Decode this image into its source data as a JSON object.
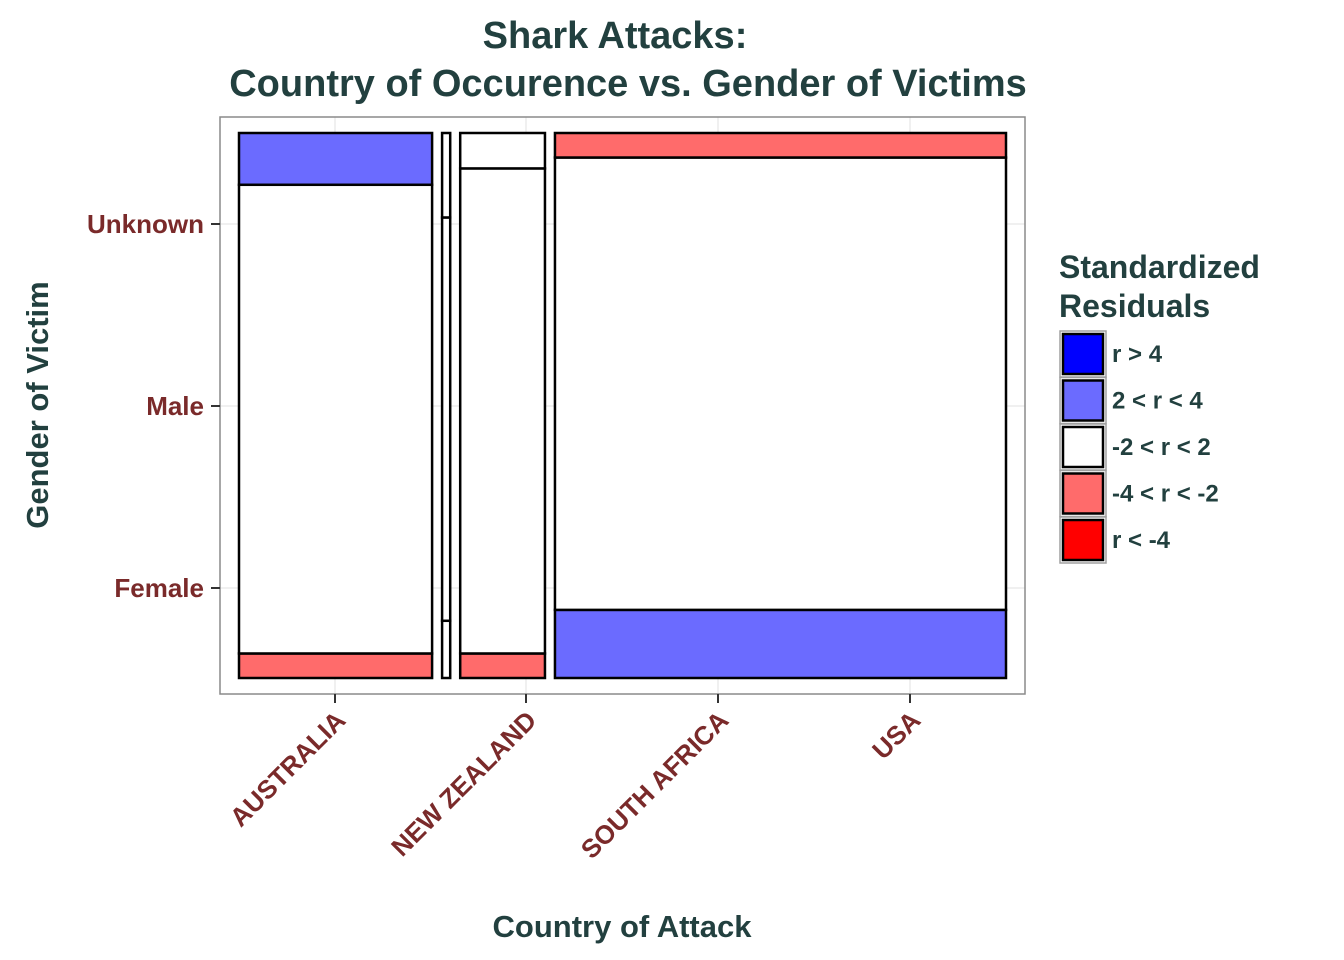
{
  "chart_data": {
    "type": "mosaic",
    "title": "Shark Attacks:",
    "subtitle": "Country of Occurence vs. Gender of Victims",
    "xlabel": "Country of Attack",
    "ylabel": "Gender of Victim",
    "x_categories": [
      "AUSTRALIA",
      "NEW ZEALAND",
      "SOUTH AFRICA",
      "USA"
    ],
    "y_categories": [
      "Female",
      "Male",
      "Unknown"
    ],
    "grid": true,
    "legend": {
      "title_line1": "Standardized",
      "title_line2": "Residuals",
      "position": "right",
      "entries": [
        {
          "label": "r > 4",
          "color": "#0000ff"
        },
        {
          "label": "2 < r < 4",
          "color": "#6b6bff"
        },
        {
          "label": "-2 < r < 2",
          "color": "#ffffff"
        },
        {
          "label": "-4 < r < -2",
          "color": "#ff6b6b"
        },
        {
          "label": "r < -4",
          "color": "#ff0000"
        }
      ]
    },
    "columns": [
      {
        "country": "AUSTRALIA",
        "width": 0.262,
        "cells": [
          {
            "gender": "Female",
            "proportion": 0.045,
            "residual_class": "-4 < r < -2"
          },
          {
            "gender": "Male",
            "proportion": 0.86,
            "residual_class": "-2 < r < 2"
          },
          {
            "gender": "Unknown",
            "proportion": 0.095,
            "residual_class": "2 < r < 4"
          }
        ]
      },
      {
        "country": "NEW ZEALAND",
        "width": 0.011,
        "cells": [
          {
            "gender": "Female",
            "proportion": 0.105,
            "residual_class": "-2 < r < 2"
          },
          {
            "gender": "Male",
            "proportion": 0.74,
            "residual_class": "-2 < r < 2"
          },
          {
            "gender": "Unknown",
            "proportion": 0.155,
            "residual_class": "-2 < r < 2"
          }
        ]
      },
      {
        "country": "SOUTH AFRICA",
        "width": 0.115,
        "cells": [
          {
            "gender": "Female",
            "proportion": 0.045,
            "residual_class": "-4 < r < -2"
          },
          {
            "gender": "Male",
            "proportion": 0.89,
            "residual_class": "-2 < r < 2"
          },
          {
            "gender": "Unknown",
            "proportion": 0.065,
            "residual_class": "-2 < r < 2"
          }
        ]
      },
      {
        "country": "USA",
        "width": 0.612,
        "cells": [
          {
            "gender": "Female",
            "proportion": 0.125,
            "residual_class": "2 < r < 4"
          },
          {
            "gender": "Male",
            "proportion": 0.83,
            "residual_class": "-2 < r < 2"
          },
          {
            "gender": "Unknown",
            "proportion": 0.045,
            "residual_class": "-4 < r < -2"
          }
        ]
      }
    ]
  }
}
